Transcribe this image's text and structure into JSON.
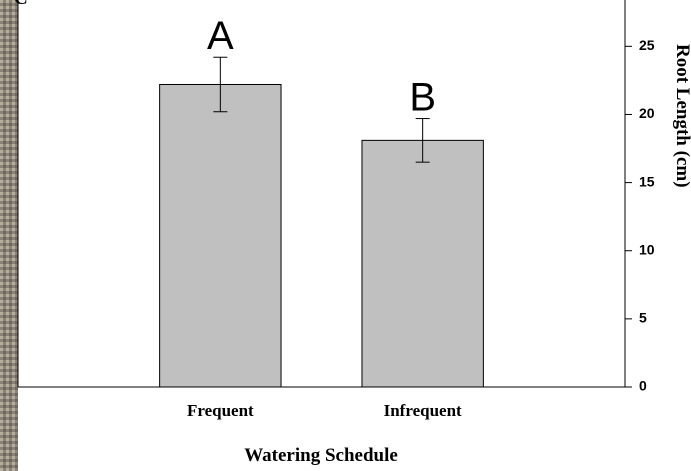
{
  "chart_data": {
    "type": "bar",
    "panel_label": "C",
    "x_label": "Watering Schedule",
    "y_label": "Root Length (cm)",
    "categories": [
      "Frequent",
      "Infrequent"
    ],
    "values": [
      22.2,
      18.1
    ],
    "errors": [
      2.0,
      1.6
    ],
    "annotations": [
      "A",
      "B"
    ],
    "color": "#c0c0c0",
    "ylim": [
      0,
      28.4
    ],
    "yticks": [
      0,
      5,
      10,
      15,
      20,
      25
    ],
    "y_axis_side": "right"
  }
}
